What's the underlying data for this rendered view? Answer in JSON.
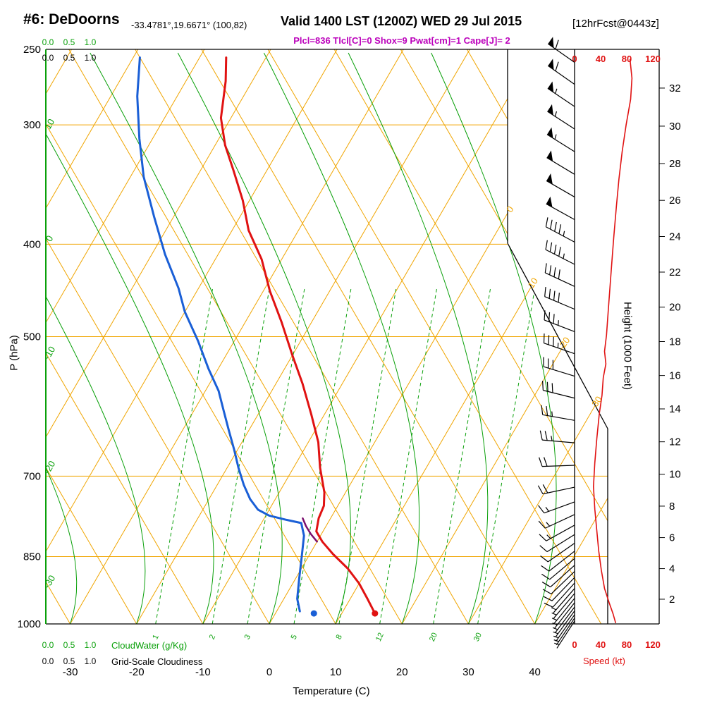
{
  "header": {
    "station": "#6: DeDoorns",
    "coords": "-33.4781°,19.6671° (100,82)",
    "valid": "Valid 1400 LST (1200Z) WED 29 Jul 2015",
    "fcst": "[12hrFcst@0443z]",
    "params": "Plcl=836 Tlcl[C]=0 Shox=9 Pwat[cm]=1 Cape[J]= 2"
  },
  "axes": {
    "pressure": {
      "title": "P (hPa)",
      "ticks": [
        250,
        300,
        400,
        500,
        700,
        850,
        1000
      ]
    },
    "temperature": {
      "title": "Temperature (C)",
      "ticks": [
        -30,
        -20,
        -10,
        0,
        10,
        20,
        30,
        40
      ]
    },
    "height": {
      "title": "Height (1000 Feet)",
      "ticks": [
        2,
        4,
        6,
        8,
        10,
        12,
        14,
        16,
        18,
        20,
        22,
        24,
        26,
        28,
        30,
        32
      ]
    },
    "speed": {
      "title": "Speed (kt)",
      "ticks": [
        0,
        40,
        80,
        120
      ]
    },
    "cloudwater": {
      "title": "CloudWater (g/Kg)",
      "ticks": [
        "0.0",
        "0.5",
        "1.0"
      ]
    },
    "cloudiness": {
      "title": "Grid-Scale Cloudiness",
      "ticks": [
        "0.0",
        "0.5",
        "1.0"
      ]
    }
  },
  "colors": {
    "grid_orange": "#f0a500",
    "green": "#0aa00a",
    "temp_red": "#e01212",
    "dewpoint_blue": "#1a5fd6",
    "magenta": "#bb00bb",
    "parcel_purple": "#7a0f6e",
    "black": "#000000"
  },
  "chart_data": {
    "type": "skewt-log-p sounding",
    "pressure_range_hpa": [
      250,
      1000
    ],
    "isotherms_c": {
      "min": -90,
      "max": 40,
      "step": 10
    },
    "dry_adiabats_c": {
      "min": -60,
      "max": 110,
      "step": 10
    },
    "moist_adiabats_c": [
      -30,
      -20,
      -10,
      0,
      10,
      20,
      30,
      40
    ],
    "mixing_ratio_lines_gkg": [
      1,
      2,
      3,
      5,
      8,
      12,
      20,
      30
    ],
    "dry_adiabat_left_labels": [
      10,
      0,
      -10,
      -20,
      -30
    ],
    "isotherm_cut_labels": [
      0,
      10,
      20,
      30
    ],
    "indices": {
      "plcl_hpa": 836,
      "tlcl_c": 0,
      "showalter": 9,
      "pwat_cm": 1,
      "cape_j": 2
    },
    "surface": {
      "pressure_hpa": 975,
      "temp_c": 15,
      "dewpoint_c": 5.8
    },
    "temperature_profile_c_by_hpa": [
      {
        "p": 255,
        "t": -56
      },
      {
        "p": 270,
        "t": -54
      },
      {
        "p": 295,
        "t": -51.5
      },
      {
        "p": 315,
        "t": -48.5
      },
      {
        "p": 335,
        "t": -45
      },
      {
        "p": 360,
        "t": -41
      },
      {
        "p": 387,
        "t": -37.5
      },
      {
        "p": 415,
        "t": -33
      },
      {
        "p": 448,
        "t": -29
      },
      {
        "p": 483,
        "t": -24.5
      },
      {
        "p": 523,
        "t": -20
      },
      {
        "p": 560,
        "t": -16
      },
      {
        "p": 603,
        "t": -12
      },
      {
        "p": 645,
        "t": -8.5
      },
      {
        "p": 686,
        "t": -6
      },
      {
        "p": 728,
        "t": -3.2
      },
      {
        "p": 752,
        "t": -2.1
      },
      {
        "p": 775,
        "t": -1.8
      },
      {
        "p": 800,
        "t": -1
      },
      {
        "p": 820,
        "t": 0.8
      },
      {
        "p": 845,
        "t": 3.5
      },
      {
        "p": 875,
        "t": 7
      },
      {
        "p": 907,
        "t": 10
      },
      {
        "p": 940,
        "t": 12.5
      },
      {
        "p": 975,
        "t": 15
      }
    ],
    "dewpoint_profile_c_by_hpa": [
      {
        "p": 255,
        "t": -69
      },
      {
        "p": 280,
        "t": -66
      },
      {
        "p": 310,
        "t": -62
      },
      {
        "p": 340,
        "t": -58
      },
      {
        "p": 374,
        "t": -53
      },
      {
        "p": 410,
        "t": -48
      },
      {
        "p": 445,
        "t": -43
      },
      {
        "p": 471,
        "t": -40
      },
      {
        "p": 505,
        "t": -35.5
      },
      {
        "p": 540,
        "t": -31.5
      },
      {
        "p": 570,
        "t": -28
      },
      {
        "p": 598,
        "t": -25.5
      },
      {
        "p": 627,
        "t": -23
      },
      {
        "p": 657,
        "t": -20.5
      },
      {
        "p": 686,
        "t": -18.3
      },
      {
        "p": 715,
        "t": -16
      },
      {
        "p": 740,
        "t": -13.8
      },
      {
        "p": 759,
        "t": -11.7
      },
      {
        "p": 770,
        "t": -9.5
      },
      {
        "p": 778,
        "t": -6.5
      },
      {
        "p": 784,
        "t": -4
      },
      {
        "p": 808,
        "t": -2.5
      },
      {
        "p": 850,
        "t": -1
      },
      {
        "p": 895,
        "t": 0.5
      },
      {
        "p": 941,
        "t": 2
      },
      {
        "p": 970,
        "t": 3.5
      }
    ],
    "parcel_path_c_by_hpa": [
      {
        "p": 820,
        "t": 0
      },
      {
        "p": 805,
        "t": -1.6
      },
      {
        "p": 790,
        "t": -3
      },
      {
        "p": 775,
        "t": -4.2
      }
    ],
    "wind_speed_profile_kt_by_hpa": [
      {
        "p": 256,
        "kt": 85
      },
      {
        "p": 268,
        "kt": 88
      },
      {
        "p": 282,
        "kt": 86
      },
      {
        "p": 300,
        "kt": 79
      },
      {
        "p": 320,
        "kt": 73
      },
      {
        "p": 342,
        "kt": 68
      },
      {
        "p": 366,
        "kt": 64
      },
      {
        "p": 394,
        "kt": 60
      },
      {
        "p": 428,
        "kt": 56
      },
      {
        "p": 466,
        "kt": 52
      },
      {
        "p": 498,
        "kt": 49
      },
      {
        "p": 518,
        "kt": 46
      },
      {
        "p": 534,
        "kt": 48
      },
      {
        "p": 552,
        "kt": 44
      },
      {
        "p": 576,
        "kt": 42
      },
      {
        "p": 602,
        "kt": 38
      },
      {
        "p": 640,
        "kt": 34
      },
      {
        "p": 678,
        "kt": 31
      },
      {
        "p": 718,
        "kt": 29
      },
      {
        "p": 758,
        "kt": 31
      },
      {
        "p": 798,
        "kt": 34
      },
      {
        "p": 838,
        "kt": 37
      },
      {
        "p": 878,
        "kt": 41
      },
      {
        "p": 918,
        "kt": 46
      },
      {
        "p": 950,
        "kt": 53
      },
      {
        "p": 976,
        "kt": 59
      },
      {
        "p": 998,
        "kt": 63
      }
    ],
    "wind_barbs": [
      {
        "p": 258,
        "dir": 305,
        "kt": 60
      },
      {
        "p": 272,
        "dir": 305,
        "kt": 60
      },
      {
        "p": 287,
        "dir": 304,
        "kt": 55
      },
      {
        "p": 303,
        "dir": 303,
        "kt": 55
      },
      {
        "p": 320,
        "dir": 302,
        "kt": 55
      },
      {
        "p": 338,
        "dir": 301,
        "kt": 50
      },
      {
        "p": 357,
        "dir": 300,
        "kt": 50
      },
      {
        "p": 377,
        "dir": 299,
        "kt": 50
      },
      {
        "p": 398,
        "dir": 298,
        "kt": 45
      },
      {
        "p": 420,
        "dir": 297,
        "kt": 45
      },
      {
        "p": 443,
        "dir": 295,
        "kt": 40
      },
      {
        "p": 468,
        "dir": 293,
        "kt": 40
      },
      {
        "p": 494,
        "dir": 291,
        "kt": 35
      },
      {
        "p": 521,
        "dir": 289,
        "kt": 35
      },
      {
        "p": 550,
        "dir": 287,
        "kt": 30
      },
      {
        "p": 580,
        "dir": 284,
        "kt": 30
      },
      {
        "p": 612,
        "dir": 280,
        "kt": 25
      },
      {
        "p": 646,
        "dir": 275,
        "kt": 25
      },
      {
        "p": 682,
        "dir": 268,
        "kt": 20
      },
      {
        "p": 719,
        "dir": 258,
        "kt": 18
      },
      {
        "p": 745,
        "dir": 250,
        "kt": 15
      },
      {
        "p": 768,
        "dir": 245,
        "kt": 14
      },
      {
        "p": 788,
        "dir": 241,
        "kt": 13
      },
      {
        "p": 806,
        "dir": 238,
        "kt": 12
      },
      {
        "p": 823,
        "dir": 235,
        "kt": 11
      },
      {
        "p": 839,
        "dir": 232,
        "kt": 10
      },
      {
        "p": 854,
        "dir": 230,
        "kt": 10
      },
      {
        "p": 868,
        "dir": 228,
        "kt": 9
      },
      {
        "p": 881,
        "dir": 226,
        "kt": 9
      },
      {
        "p": 894,
        "dir": 224,
        "kt": 8
      },
      {
        "p": 906,
        "dir": 222,
        "kt": 8
      },
      {
        "p": 918,
        "dir": 221,
        "kt": 7
      },
      {
        "p": 929,
        "dir": 220,
        "kt": 7
      },
      {
        "p": 940,
        "dir": 219,
        "kt": 6
      },
      {
        "p": 950,
        "dir": 218,
        "kt": 6
      },
      {
        "p": 960,
        "dir": 217,
        "kt": 5
      },
      {
        "p": 969,
        "dir": 216,
        "kt": 5
      },
      {
        "p": 978,
        "dir": 215,
        "kt": 5
      },
      {
        "p": 986,
        "dir": 214,
        "kt": 4
      },
      {
        "p": 993,
        "dir": 213,
        "kt": 4
      }
    ]
  }
}
